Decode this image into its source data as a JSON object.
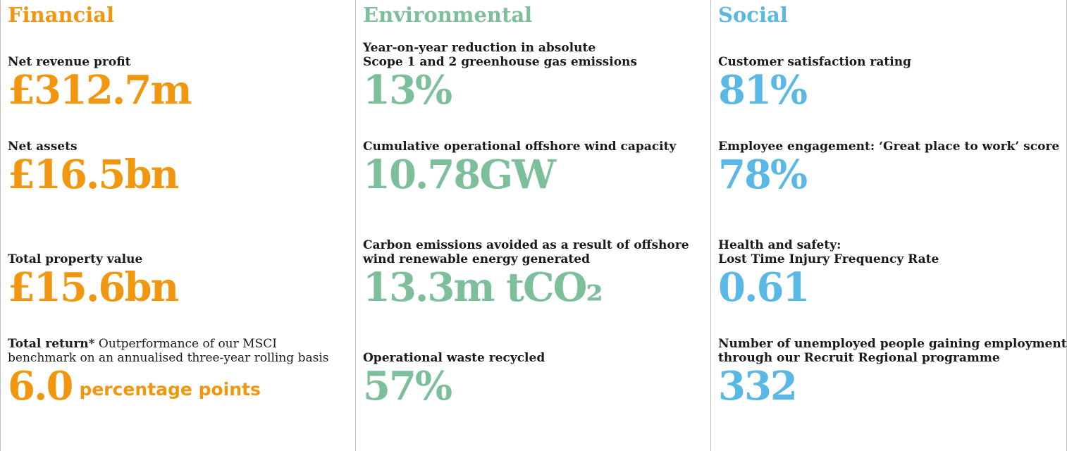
{
  "colors": {
    "financial": "#f0960f",
    "environmental": "#7dbf9b",
    "social": "#5ab8e6"
  },
  "financial": {
    "heading": "Financial",
    "metrics": [
      {
        "label": "Net revenue profit",
        "value": "£312.7m"
      },
      {
        "label": "Net assets",
        "value": "£16.5bn"
      },
      {
        "label": "Total property value",
        "value": "£15.6bn"
      },
      {
        "label_bold": "Total return*",
        "label_line1": " Outperformance of our MSCI",
        "label_line2": "benchmark on an annualised three-year rolling basis",
        "value": "6.0",
        "unit": "percentage points"
      }
    ]
  },
  "environmental": {
    "heading": "Environmental",
    "metrics": [
      {
        "label_line1": "Year-on-year reduction in absolute",
        "label_line2": "Scope 1 and 2 greenhouse gas emissions",
        "value": "13%"
      },
      {
        "label": "Cumulative operational offshore wind capacity",
        "value": "10.78GW"
      },
      {
        "label_line1": "Carbon emissions avoided as a result of offshore",
        "label_line2": "wind renewable energy generated",
        "value": "13.3m tCO₂"
      },
      {
        "label": "Operational waste recycled",
        "value": "57%"
      }
    ]
  },
  "social": {
    "heading": "Social",
    "metrics": [
      {
        "label": "Customer satisfaction rating",
        "value": "81%"
      },
      {
        "label": "Employee engagement: ‘Great place to work’ score",
        "value": "78%"
      },
      {
        "label_line1": "Health and safety:",
        "label_line2": "Lost Time Injury Frequency Rate",
        "value": "0.61"
      },
      {
        "label_line1": "Number of unemployed people gaining employment",
        "label_line2": "through our Recruit Regional programme",
        "value": "332"
      }
    ]
  }
}
